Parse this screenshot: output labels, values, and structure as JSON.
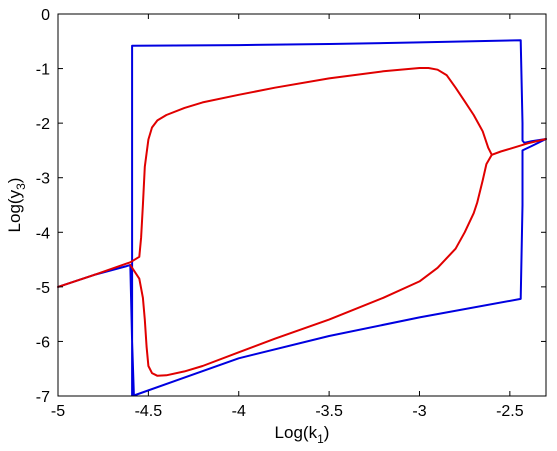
{
  "chart_data": {
    "type": "line",
    "xlabel_main": "Log(k",
    "xlabel_sub": "1",
    "xlabel_close": ")",
    "ylabel_main": "Log(y",
    "ylabel_sub": "3",
    "ylabel_close": ")",
    "xlim": [
      -5,
      -2.3
    ],
    "ylim": [
      -7,
      0
    ],
    "x_ticks": [
      -5,
      -4.5,
      -4,
      -3.5,
      -3,
      -2.5
    ],
    "x_tick_labels": [
      "-5",
      "-4.5",
      "-4",
      "-3.5",
      "-3",
      "-2.5"
    ],
    "y_ticks": [
      0,
      -1,
      -2,
      -3,
      -4,
      -5,
      -6,
      -7
    ],
    "y_tick_labels": [
      "0",
      "-1",
      "-2",
      "-3",
      "-4",
      "-5",
      "-6",
      "-7"
    ],
    "grid": false,
    "legend": "none",
    "series": [
      {
        "color": "#0000e0",
        "x": [
          -5.0,
          -4.8,
          -4.62,
          -4.6,
          -4.59,
          -4.58,
          -4.58,
          -4.59,
          -4.59,
          -4.0,
          -3.5,
          -3.0,
          -2.44,
          -2.43,
          -2.43,
          -2.42,
          -2.38,
          -2.3
        ],
        "y": [
          -5.0,
          -4.78,
          -4.62,
          -4.6,
          -6.0,
          -6.99,
          -6.99,
          -6.99,
          -0.58,
          -0.57,
          -0.55,
          -0.52,
          -0.48,
          -2.0,
          -2.32,
          -2.36,
          -2.33,
          -2.29
        ]
      },
      {
        "color": "#0000e0",
        "x": [
          -4.58,
          -4.0,
          -3.5,
          -3.0,
          -2.44,
          -2.43,
          -2.43,
          -2.38,
          -2.3
        ],
        "y": [
          -6.99,
          -6.31,
          -5.9,
          -5.56,
          -5.22,
          -3.5,
          -2.5,
          -2.42,
          -2.29
        ]
      },
      {
        "color": "#e00000",
        "x": [
          -5.0,
          -4.8,
          -4.6,
          -4.55,
          -4.54,
          -4.53,
          -4.52,
          -4.5,
          -4.48,
          -4.45,
          -4.4,
          -4.3,
          -4.2,
          -4.0,
          -3.8,
          -3.5,
          -3.2,
          -3.0,
          -2.95,
          -2.9,
          -2.85,
          -2.8,
          -2.75,
          -2.7,
          -2.65,
          -2.62,
          -2.6,
          -2.55,
          -2.5,
          -2.45,
          -2.4,
          -2.3
        ],
        "y": [
          -5.0,
          -4.78,
          -4.55,
          -4.45,
          -4.1,
          -3.5,
          -2.8,
          -2.3,
          -2.08,
          -1.95,
          -1.85,
          -1.72,
          -1.62,
          -1.48,
          -1.35,
          -1.18,
          -1.05,
          -0.99,
          -0.99,
          -1.02,
          -1.12,
          -1.35,
          -1.6,
          -1.85,
          -2.15,
          -2.45,
          -2.58,
          -2.52,
          -2.47,
          -2.42,
          -2.37,
          -2.29
        ]
      },
      {
        "color": "#e00000",
        "x": [
          -4.6,
          -4.55,
          -4.53,
          -4.52,
          -4.51,
          -4.5,
          -4.48,
          -4.45,
          -4.4,
          -4.3,
          -4.2,
          -4.0,
          -3.8,
          -3.5,
          -3.2,
          -3.0,
          -2.9,
          -2.8,
          -2.75,
          -2.7,
          -2.68,
          -2.65,
          -2.63,
          -2.6
        ],
        "y": [
          -4.6,
          -4.85,
          -5.2,
          -5.6,
          -6.1,
          -6.45,
          -6.58,
          -6.63,
          -6.62,
          -6.55,
          -6.45,
          -6.2,
          -5.95,
          -5.6,
          -5.2,
          -4.9,
          -4.65,
          -4.3,
          -4.0,
          -3.65,
          -3.45,
          -3.05,
          -2.75,
          -2.58
        ]
      }
    ]
  }
}
